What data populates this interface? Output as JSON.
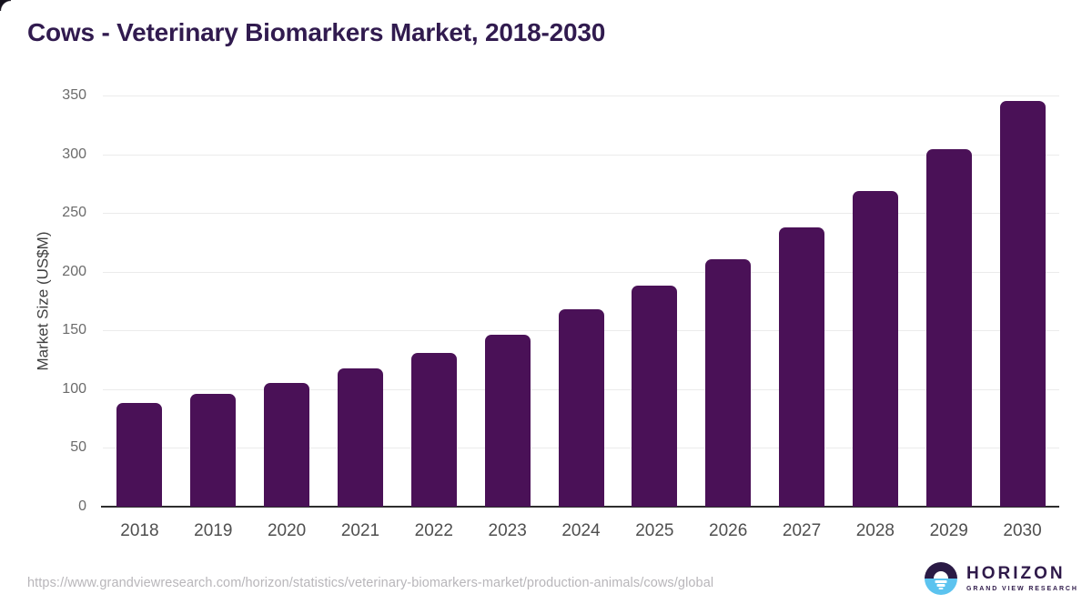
{
  "title": "Cows - Veterinary Biomarkers Market, 2018-2030",
  "chart_data": {
    "type": "bar",
    "title": "Cows - Veterinary Biomarkers Market, 2018-2030",
    "categories": [
      "2018",
      "2019",
      "2020",
      "2021",
      "2022",
      "2023",
      "2024",
      "2025",
      "2026",
      "2027",
      "2028",
      "2029",
      "2030"
    ],
    "values": [
      88,
      96,
      105,
      118,
      131,
      146,
      168,
      188,
      211,
      238,
      269,
      304,
      345
    ],
    "xlabel": "",
    "ylabel": "Market Size (US$M)",
    "ylim": [
      0,
      350
    ],
    "ytick_step": 50,
    "yticks": [
      0,
      50,
      100,
      150,
      200,
      250,
      300,
      350
    ],
    "grid": true,
    "legend": false,
    "unit": "US$M"
  },
  "footer": {
    "source_url": "https://www.grandviewresearch.com/horizon/statistics/veterinary-biomarkers-market/production-animals/cows/global"
  },
  "logo": {
    "name": "HORIZON",
    "subtext": "GRAND VIEW RESEARCH"
  },
  "colors": {
    "bar": "#4a1157",
    "title": "#311b4f",
    "gridline": "#ebebeb",
    "axis_line": "#2d2d2d",
    "y_tick_label": "#6b6b6b",
    "x_tick_label": "#4f4f4f",
    "url_text": "#b8b6ba",
    "logo_text": "#2f1a4a",
    "logo_mark_top": "#2a1a45",
    "logo_mark_bottom": "#5cc3ef"
  }
}
